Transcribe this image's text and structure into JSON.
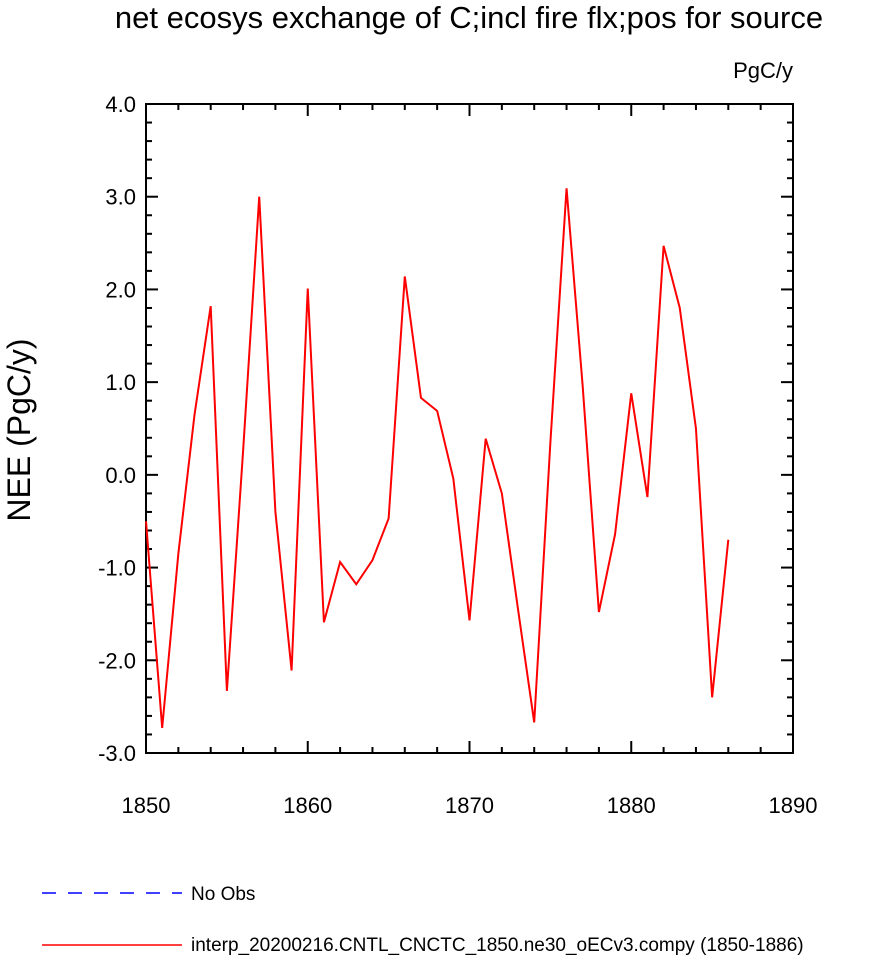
{
  "chart_data": {
    "type": "line",
    "title": "net ecosys exchange of C;incl fire flx;pos for source",
    "units_label": "PgC/y",
    "ylabel": "NEE  (PgC/y)",
    "xlabel": "",
    "xlim": [
      1850,
      1890
    ],
    "ylim": [
      -3.0,
      4.0
    ],
    "x_ticks": [
      "1850",
      "1860",
      "1870",
      "1880",
      "1890"
    ],
    "y_ticks": [
      "4.0",
      "3.0",
      "2.0",
      "1.0",
      "0.0",
      "-1.0",
      "-2.0",
      "-3.0"
    ],
    "grid": false,
    "legend_position": "bottom",
    "series": [
      {
        "name": "interp_20200216.CNTL_CNCTC_1850.ne30_oECv3.compy (1850-1886)",
        "color": "#ff0000",
        "style": "solid",
        "x": [
          1850,
          1851,
          1852,
          1853,
          1854,
          1855,
          1856,
          1857,
          1858,
          1859,
          1860,
          1861,
          1862,
          1863,
          1864,
          1865,
          1866,
          1867,
          1868,
          1869,
          1870,
          1871,
          1872,
          1873,
          1874,
          1875,
          1876,
          1877,
          1878,
          1879,
          1880,
          1881,
          1882,
          1883,
          1884,
          1885,
          1886
        ],
        "y": [
          -0.5,
          -2.73,
          -0.85,
          0.65,
          1.82,
          -2.33,
          0.25,
          3.0,
          -0.4,
          -2.11,
          2.01,
          -1.59,
          -0.94,
          -1.18,
          -0.92,
          -0.47,
          2.14,
          0.83,
          0.69,
          -0.04,
          -1.57,
          0.39,
          -0.2,
          -1.45,
          -2.67,
          0.35,
          3.09,
          0.95,
          -1.48,
          -0.64,
          0.88,
          -0.24,
          2.47,
          1.8,
          0.5,
          -2.4,
          -0.7
        ]
      }
    ],
    "legend_entries": [
      {
        "label": "No Obs",
        "color": "#0000ff",
        "style": "dashed"
      },
      {
        "label": "interp_20200216.CNTL_CNCTC_1850.ne30_oECv3.compy (1850-1886)",
        "color": "#ff0000",
        "style": "solid"
      }
    ]
  }
}
